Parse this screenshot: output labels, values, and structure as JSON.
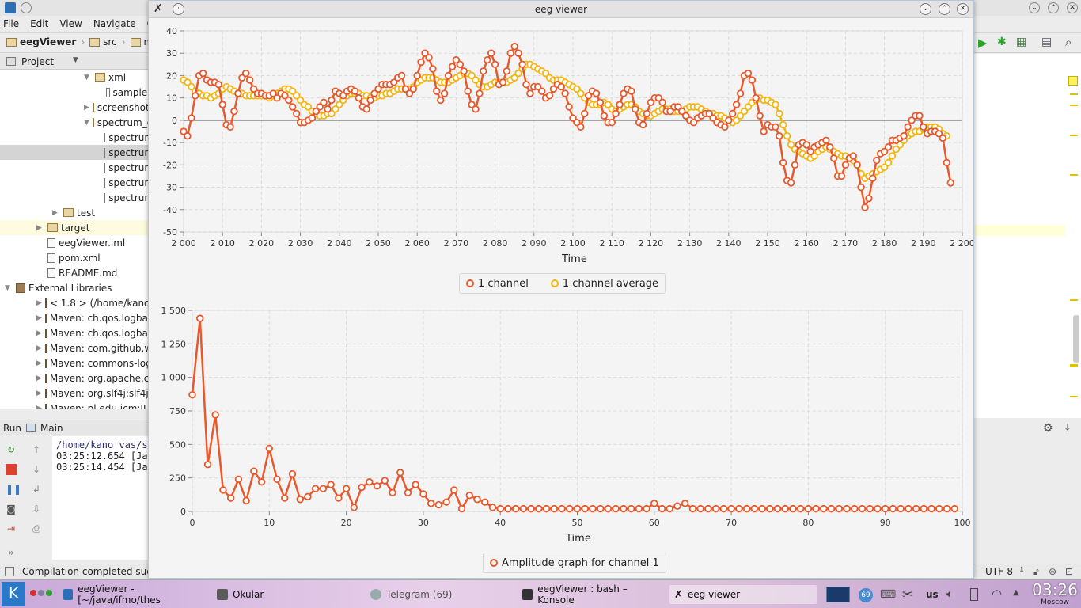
{
  "ide": {
    "menu": [
      "File",
      "Edit",
      "View",
      "Navigate",
      "Co"
    ],
    "breadcrumb": [
      "eegViewer",
      "src",
      "ma"
    ],
    "project_tab": "Project",
    "tree": [
      {
        "label": "xml",
        "indent": 5,
        "kind": "folder",
        "arrow": "▼"
      },
      {
        "label": "sample.",
        "indent": 6,
        "kind": "file",
        "arrow": ""
      },
      {
        "label": "screenshots",
        "indent": 5,
        "kind": "folder",
        "arrow": "▶"
      },
      {
        "label": "spectrum_o",
        "indent": 5,
        "kind": "folder",
        "arrow": "▼"
      },
      {
        "label": "spectrun",
        "indent": 6,
        "kind": "file",
        "arrow": ""
      },
      {
        "label": "spectrun",
        "indent": 6,
        "kind": "file",
        "arrow": "",
        "selected": true
      },
      {
        "label": "spectrun",
        "indent": 6,
        "kind": "file",
        "arrow": ""
      },
      {
        "label": "spectrun",
        "indent": 6,
        "kind": "file",
        "arrow": ""
      },
      {
        "label": "spectrun",
        "indent": 6,
        "kind": "file",
        "arrow": ""
      },
      {
        "label": "test",
        "indent": 3,
        "kind": "folder",
        "arrow": "▶"
      },
      {
        "label": "target",
        "indent": 2,
        "kind": "folder",
        "arrow": "▶",
        "highlight": true
      },
      {
        "label": "eegViewer.iml",
        "indent": 2,
        "kind": "file",
        "arrow": ""
      },
      {
        "label": "pom.xml",
        "indent": 2,
        "kind": "file",
        "arrow": ""
      },
      {
        "label": "README.md",
        "indent": 2,
        "kind": "file",
        "arrow": ""
      },
      {
        "label": "External Libraries",
        "indent": 0,
        "kind": "lib",
        "arrow": "▼"
      },
      {
        "label": "< 1.8 > (/home/kano_va",
        "indent": 2,
        "kind": "lib",
        "arrow": "▶"
      },
      {
        "label": "Maven: ch.qos.logback:",
        "indent": 2,
        "kind": "lib",
        "arrow": "▶"
      },
      {
        "label": "Maven: ch.qos.logback:",
        "indent": 2,
        "kind": "lib",
        "arrow": "▶"
      },
      {
        "label": "Maven: com.github.wen",
        "indent": 2,
        "kind": "lib",
        "arrow": "▶"
      },
      {
        "label": "Maven: commons-logg",
        "indent": 2,
        "kind": "lib",
        "arrow": "▶"
      },
      {
        "label": "Maven: org.apache.con",
        "indent": 2,
        "kind": "lib",
        "arrow": "▶"
      },
      {
        "label": "Maven: org.slf4j:slf4j-ap",
        "indent": 2,
        "kind": "lib",
        "arrow": "▶"
      },
      {
        "label": "Maven: pl.edu.icm:JLar",
        "indent": 2,
        "kind": "lib",
        "arrow": "▶"
      }
    ],
    "run_tab": "Run",
    "run_config": "Main",
    "console_lines": [
      "/home/kano_vas/sc",
      "03:25:12.654 [Jav",
      "03:25:14.454 [Jav"
    ],
    "status_text": "Compilation completed succ",
    "encoding": "UTF-8"
  },
  "eeg_window": {
    "title": "eeg viewer",
    "colors": {
      "channel": "#e8582b",
      "average": "#f5b40f"
    }
  },
  "chart_data": [
    {
      "type": "line",
      "xlabel": "Time",
      "xlim": [
        2000,
        2200
      ],
      "ylim": [
        -50,
        40
      ],
      "x_ticks": [
        "2 000",
        "2 010",
        "2 020",
        "2 030",
        "2 040",
        "2 050",
        "2 060",
        "2 070",
        "2 080",
        "2 090",
        "2 100",
        "2 110",
        "2 120",
        "2 130",
        "2 140",
        "2 150",
        "2 160",
        "2 170",
        "2 180",
        "2 190",
        "2 200"
      ],
      "y_ticks": [
        "40",
        "30",
        "20",
        "10",
        "0",
        "-10",
        "-20",
        "-30",
        "-40",
        "-50"
      ],
      "x_start": 2000,
      "x_step": 1,
      "series": [
        {
          "name": "1 channel",
          "values": [
            -5,
            -7,
            1,
            11,
            20,
            21,
            18,
            17,
            17,
            16,
            7,
            -2,
            -3,
            4,
            12,
            19,
            21,
            18,
            14,
            12,
            12,
            11,
            11,
            12,
            10,
            12,
            11,
            9,
            6,
            3,
            -1,
            -1,
            0,
            1,
            4,
            6,
            8,
            5,
            9,
            13,
            12,
            11,
            13,
            14,
            13,
            10,
            6,
            5,
            9,
            12,
            14,
            16,
            16,
            16,
            17,
            19,
            20,
            14,
            12,
            14,
            20,
            26,
            30,
            28,
            23,
            13,
            9,
            12,
            20,
            24,
            27,
            25,
            22,
            13,
            7,
            5,
            12,
            22,
            27,
            30,
            25,
            16,
            17,
            22,
            30,
            33,
            30,
            25,
            16,
            12,
            15,
            15,
            13,
            10,
            11,
            14,
            16,
            15,
            12,
            6,
            1,
            -1,
            -3,
            3,
            11,
            13,
            12,
            8,
            2,
            -1,
            -1,
            3,
            7,
            12,
            14,
            13,
            5,
            -1,
            -2,
            3,
            8,
            10,
            10,
            8,
            4,
            4,
            6,
            6,
            4,
            2,
            0,
            -1,
            1,
            2,
            3,
            3,
            1,
            -1,
            -2,
            -3,
            0,
            3,
            7,
            12,
            20,
            21,
            18,
            10,
            2,
            -5,
            -2,
            -3,
            -3,
            -7,
            -19,
            -27,
            -28,
            -20,
            -11,
            -10,
            -11,
            -14,
            -12,
            -11,
            -10,
            -9,
            -12,
            -17,
            -25,
            -25,
            -20,
            -17,
            -16,
            -20,
            -30,
            -39,
            -35,
            -26,
            -18,
            -15,
            -14,
            -12,
            -9,
            -9,
            -8,
            -7,
            -3,
            0,
            2,
            2,
            -3,
            -6,
            -5,
            -5,
            -6,
            -8,
            -19,
            -28
          ]
        },
        {
          "name": "1 channel average",
          "values": [
            18,
            17,
            15,
            13,
            12,
            11,
            11,
            10,
            11,
            12,
            14,
            15,
            14,
            13,
            12,
            12,
            11,
            11,
            11,
            11,
            11,
            11,
            10,
            11,
            12,
            13,
            14,
            14,
            13,
            11,
            9,
            7,
            6,
            4,
            3,
            2,
            2,
            3,
            3,
            5,
            7,
            9,
            11,
            12,
            12,
            12,
            11,
            11,
            10,
            10,
            11,
            11,
            12,
            12,
            13,
            14,
            14,
            14,
            14,
            15,
            17,
            18,
            19,
            19,
            19,
            18,
            17,
            17,
            17,
            18,
            19,
            20,
            21,
            21,
            20,
            18,
            16,
            15,
            15,
            16,
            17,
            17,
            17,
            17,
            18,
            19,
            21,
            23,
            25,
            25,
            24,
            23,
            22,
            21,
            19,
            18,
            18,
            18,
            17,
            16,
            15,
            14,
            12,
            10,
            8,
            7,
            7,
            7,
            8,
            7,
            5,
            4,
            5,
            6,
            7,
            7,
            6,
            4,
            3,
            2,
            2,
            3,
            4,
            5,
            5,
            5,
            4,
            4,
            4,
            5,
            6,
            6,
            6,
            5,
            4,
            3,
            3,
            2,
            2,
            1,
            0,
            -1,
            0,
            2,
            4,
            6,
            8,
            9,
            10,
            9,
            9,
            8,
            7,
            3,
            -2,
            -7,
            -11,
            -13,
            -14,
            -15,
            -16,
            -17,
            -16,
            -14,
            -13,
            -12,
            -13,
            -14,
            -15,
            -16,
            -16,
            -17,
            -18,
            -20,
            -24,
            -26,
            -25,
            -24,
            -23,
            -22,
            -21,
            -19,
            -16,
            -13,
            -11,
            -9,
            -7,
            -6,
            -5,
            -5,
            -4,
            -3,
            -3,
            -3,
            -4,
            -6,
            -7
          ]
        }
      ]
    },
    {
      "type": "line",
      "xlabel": "Time",
      "xlim": [
        0,
        100
      ],
      "ylim": [
        0,
        1500
      ],
      "x_ticks": [
        "0",
        "10",
        "20",
        "30",
        "40",
        "50",
        "60",
        "70",
        "80",
        "90",
        "100"
      ],
      "y_ticks": [
        "1 500",
        "1 250",
        "1 000",
        "750",
        "500",
        "250",
        "0"
      ],
      "series": [
        {
          "name": "Amplitude graph for channel 1",
          "values": [
            870,
            1440,
            350,
            720,
            160,
            100,
            240,
            80,
            300,
            220,
            470,
            240,
            100,
            280,
            90,
            110,
            170,
            170,
            200,
            100,
            170,
            30,
            180,
            220,
            190,
            230,
            140,
            290,
            140,
            200,
            130,
            60,
            50,
            70,
            160,
            20,
            120,
            90,
            70,
            30,
            20,
            20,
            20,
            20,
            20,
            20,
            20,
            20,
            20,
            20,
            20,
            20,
            20,
            20,
            20,
            20,
            20,
            20,
            20,
            20,
            60,
            20,
            20,
            40,
            60,
            20,
            20,
            20,
            20,
            20,
            20,
            20,
            20,
            20,
            20,
            20,
            20,
            20,
            20,
            20,
            20,
            20,
            20,
            20,
            20,
            20,
            20,
            20,
            20,
            20,
            20,
            20,
            20,
            20,
            20,
            20,
            20,
            20,
            20,
            20
          ]
        }
      ]
    }
  ],
  "taskbar": {
    "tasks": [
      "eegViewer - [~/java/ifmo/thes",
      "Okular",
      "Telegram (69)",
      "eegViewer : bash – Konsole",
      "eeg viewer"
    ],
    "keyboard": "us",
    "badge": "69",
    "clock": "03:26",
    "timezone": "Moscow"
  }
}
